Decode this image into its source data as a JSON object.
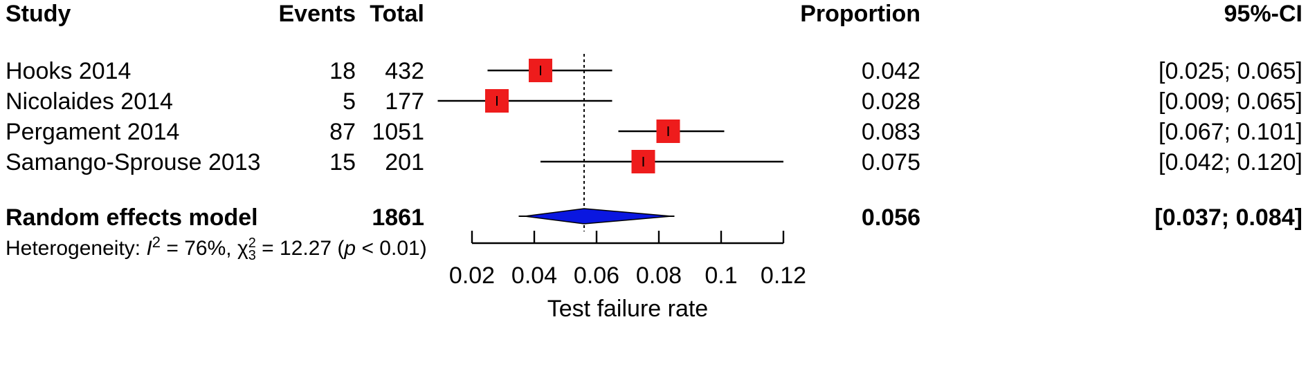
{
  "header": {
    "study": "Study",
    "events": "Events",
    "total": "Total",
    "proportion": "Proportion",
    "ci": "95%-CI"
  },
  "heterogeneity": {
    "prefix": "Heterogeneity: ",
    "i_symbol": "I",
    "i_exp": "2",
    "i_value": " = 76%, ",
    "chi_symbol": "χ",
    "chi_exp": "2",
    "chi_sub": "3",
    "chi_value": " = 12.27 (",
    "p_symbol": "p",
    "p_value": " < 0.01)"
  },
  "colors": {
    "study_box": "#ee1c1c",
    "summary_diamond": "#0a17e0",
    "lines": "#000000"
  },
  "chart_data": {
    "type": "forest",
    "xlabel": "Test failure rate",
    "xlim": [
      0.02,
      0.12
    ],
    "xticks": [
      "0.02",
      "0.04",
      "0.06",
      "0.08",
      "0.1",
      "0.12"
    ],
    "reference_line": 0.056,
    "studies": [
      {
        "name": "Hooks 2014",
        "events": "18",
        "total": "432",
        "proportion": 0.042,
        "lower": 0.025,
        "upper": 0.065,
        "prop_label": "0.042",
        "ci_label": "[0.025; 0.065]",
        "weight": 1.0
      },
      {
        "name": "Nicolaides 2014",
        "events": "5",
        "total": "177",
        "proportion": 0.028,
        "lower": 0.009,
        "upper": 0.065,
        "prop_label": "0.028",
        "ci_label": "[0.009; 0.065]",
        "weight": 1.0
      },
      {
        "name": "Pergament 2014",
        "events": "87",
        "total": "1051",
        "proportion": 0.083,
        "lower": 0.067,
        "upper": 0.101,
        "prop_label": "0.083",
        "ci_label": "[0.067; 0.101]",
        "weight": 1.0
      },
      {
        "name": "Samango-Sprouse 2013",
        "events": "15",
        "total": "201",
        "proportion": 0.075,
        "lower": 0.042,
        "upper": 0.12,
        "prop_label": "0.075",
        "ci_label": "[0.042; 0.120]",
        "weight": 1.0
      }
    ],
    "summary": {
      "name": "Random effects model",
      "total": "1861",
      "proportion": 0.056,
      "lower": 0.037,
      "upper": 0.084,
      "prop_label": "0.056",
      "ci_label": "[0.037; 0.084]",
      "prediction_lower": 0.035,
      "prediction_upper": 0.085
    }
  }
}
